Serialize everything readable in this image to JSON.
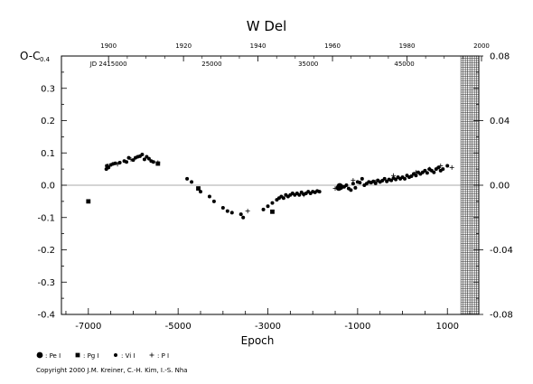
{
  "chart_data": {
    "type": "scatter",
    "title": "W Del",
    "xlabel": "Epoch",
    "ylabel": "O-C",
    "xlim": [
      -7600,
      1700
    ],
    "ylim": [
      -0.4,
      0.4
    ],
    "right_ylim": [
      -0.08,
      0.08
    ],
    "x_ticks": [
      -7000,
      -5000,
      -3000,
      -1000,
      1000
    ],
    "x_tick_labels": [
      "-7000",
      "-5000",
      "-3000",
      "-1000",
      "1000"
    ],
    "y_ticks": [
      -0.4,
      -0.3,
      -0.2,
      -0.1,
      0.0,
      0.1,
      0.2,
      0.3
    ],
    "y_tick_labels": [
      "-0.4",
      "-0.3",
      "-0.2",
      "-0.1",
      "0.0",
      "0.1",
      "0.2",
      "0.3"
    ],
    "y_top_label": "0.4",
    "right_ticks": [
      -0.08,
      -0.04,
      0.0,
      0.04,
      0.08
    ],
    "right_tick_labels": [
      "-0.08",
      "-0.04",
      "0.00",
      "0.04",
      "0.08"
    ],
    "top_year_ticks": [
      {
        "label": "1900",
        "x": -6550
      },
      {
        "label": "1920",
        "x": -4880
      },
      {
        "label": "1940",
        "x": -3220
      },
      {
        "label": "1960",
        "x": -1560
      },
      {
        "label": "1980",
        "x": 100
      },
      {
        "label": "2000",
        "x": 1760
      }
    ],
    "jd_labels": [
      {
        "label": "JD 2415000",
        "x": -6550
      },
      {
        "label": "25000",
        "x": -4250
      },
      {
        "label": "35000",
        "x": -2100
      },
      {
        "label": "45000",
        "x": 40
      }
    ],
    "hatched_from_x": 1300,
    "series": [
      {
        "name": "Pe I",
        "marker": "big-dot",
        "points": [
          [
            -1400,
            -0.003
          ],
          [
            -1380,
            -0.005
          ],
          [
            -1420,
            -0.008
          ]
        ]
      },
      {
        "name": "Pg I",
        "marker": "square",
        "points": [
          [
            -7000,
            -0.05
          ],
          [
            -5450,
            0.067
          ],
          [
            -4550,
            -0.01
          ],
          [
            -2900,
            -0.082
          ]
        ]
      },
      {
        "name": "Vi I",
        "marker": "dot",
        "points": [
          [
            -6600,
            0.05
          ],
          [
            -6590,
            0.06
          ],
          [
            -6550,
            0.055
          ],
          [
            -6500,
            0.063
          ],
          [
            -6450,
            0.066
          ],
          [
            -6400,
            0.068
          ],
          [
            -6300,
            0.07
          ],
          [
            -6200,
            0.075
          ],
          [
            -6150,
            0.072
          ],
          [
            -6100,
            0.085
          ],
          [
            -6000,
            0.078
          ],
          [
            -5950,
            0.085
          ],
          [
            -5900,
            0.088
          ],
          [
            -5850,
            0.09
          ],
          [
            -5800,
            0.095
          ],
          [
            -5750,
            0.08
          ],
          [
            -5700,
            0.088
          ],
          [
            -5650,
            0.082
          ],
          [
            -5600,
            0.075
          ],
          [
            -5550,
            0.072
          ],
          [
            -4800,
            0.02
          ],
          [
            -4700,
            0.01
          ],
          [
            -4500,
            -0.02
          ],
          [
            -4300,
            -0.035
          ],
          [
            -4200,
            -0.05
          ],
          [
            -4000,
            -0.07
          ],
          [
            -3900,
            -0.08
          ],
          [
            -3800,
            -0.085
          ],
          [
            -3600,
            -0.09
          ],
          [
            -3550,
            -0.1
          ],
          [
            -3100,
            -0.075
          ],
          [
            -3000,
            -0.065
          ],
          [
            -2900,
            -0.055
          ],
          [
            -2800,
            -0.045
          ],
          [
            -2750,
            -0.04
          ],
          [
            -2700,
            -0.035
          ],
          [
            -2650,
            -0.04
          ],
          [
            -2600,
            -0.03
          ],
          [
            -2550,
            -0.035
          ],
          [
            -2500,
            -0.03
          ],
          [
            -2450,
            -0.025
          ],
          [
            -2400,
            -0.03
          ],
          [
            -2350,
            -0.025
          ],
          [
            -2300,
            -0.03
          ],
          [
            -2250,
            -0.022
          ],
          [
            -2200,
            -0.028
          ],
          [
            -2150,
            -0.025
          ],
          [
            -2100,
            -0.02
          ],
          [
            -2050,
            -0.025
          ],
          [
            -2000,
            -0.02
          ],
          [
            -1950,
            -0.022
          ],
          [
            -1900,
            -0.018
          ],
          [
            -1850,
            -0.02
          ],
          [
            -1300,
            -0.005
          ],
          [
            -1250,
            0.0
          ],
          [
            -1200,
            -0.01
          ],
          [
            -1150,
            -0.015
          ],
          [
            -1100,
            0.005
          ],
          [
            -1050,
            -0.008
          ],
          [
            -1000,
            0.01
          ],
          [
            -950,
            0.008
          ],
          [
            -900,
            0.02
          ],
          [
            -850,
            0.0
          ],
          [
            -800,
            0.005
          ],
          [
            -750,
            0.01
          ],
          [
            -700,
            0.008
          ],
          [
            -650,
            0.012
          ],
          [
            -600,
            0.006
          ],
          [
            -550,
            0.015
          ],
          [
            -500,
            0.01
          ],
          [
            -450,
            0.014
          ],
          [
            -400,
            0.02
          ],
          [
            -350,
            0.012
          ],
          [
            -300,
            0.018
          ],
          [
            -250,
            0.015
          ],
          [
            -200,
            0.022
          ],
          [
            -150,
            0.018
          ],
          [
            -100,
            0.025
          ],
          [
            -50,
            0.02
          ],
          [
            0,
            0.025
          ],
          [
            50,
            0.02
          ],
          [
            100,
            0.03
          ],
          [
            150,
            0.025
          ],
          [
            200,
            0.028
          ],
          [
            250,
            0.035
          ],
          [
            300,
            0.03
          ],
          [
            350,
            0.04
          ],
          [
            400,
            0.035
          ],
          [
            450,
            0.04
          ],
          [
            500,
            0.045
          ],
          [
            550,
            0.038
          ],
          [
            600,
            0.05
          ],
          [
            650,
            0.045
          ],
          [
            700,
            0.04
          ],
          [
            750,
            0.05
          ],
          [
            800,
            0.055
          ],
          [
            850,
            0.045
          ],
          [
            900,
            0.05
          ],
          [
            1000,
            0.06
          ]
        ]
      },
      {
        "name": "P I",
        "marker": "plus",
        "points": [
          [
            -6560,
            0.06
          ],
          [
            -6350,
            0.065
          ],
          [
            -6050,
            0.08
          ],
          [
            -5450,
            0.07
          ],
          [
            -3450,
            -0.08
          ],
          [
            -2200,
            -0.03
          ],
          [
            -1500,
            -0.01
          ],
          [
            -1100,
            0.015
          ],
          [
            -600,
            0.01
          ],
          [
            -200,
            0.03
          ],
          [
            300,
            0.04
          ],
          [
            600,
            0.05
          ],
          [
            850,
            0.06
          ],
          [
            1100,
            0.055
          ]
        ]
      }
    ],
    "legend": [
      {
        "symbol": "big-dot",
        "label": ": Pe I"
      },
      {
        "symbol": "square",
        "label": ": Pg I"
      },
      {
        "symbol": "dot",
        "label": ": Vi I"
      },
      {
        "symbol": "plus",
        "label": ": P I"
      }
    ]
  },
  "copyright": "Copyright 2000 J.M. Kreiner, C.-H. Kim, I.-S. Nha"
}
